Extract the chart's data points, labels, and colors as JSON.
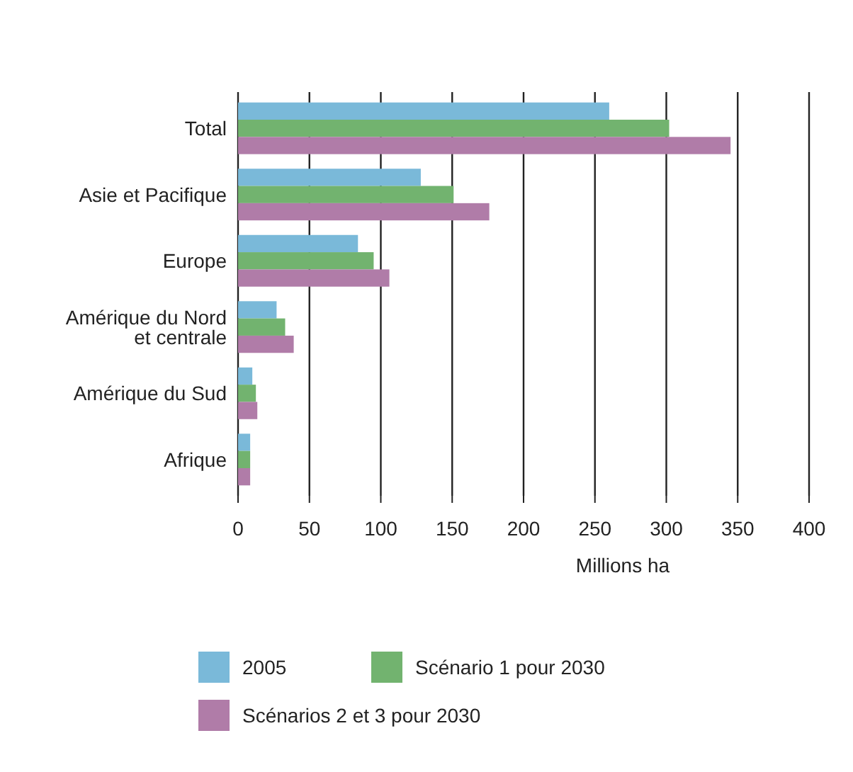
{
  "chart_data": {
    "type": "bar",
    "orientation": "horizontal",
    "xlabel": "Millions ha",
    "categories": [
      "Total",
      "Asie et Pacifique",
      "Europe",
      "Amérique du Nord\net centrale",
      "Amérique du Sud",
      "Afrique"
    ],
    "series": [
      {
        "name": "2005",
        "color": "#7ab9d9",
        "values": [
          260,
          128,
          84,
          27,
          10,
          8.5
        ]
      },
      {
        "name": "Scénario 1 pour 2030",
        "color": "#72b36f",
        "values": [
          302,
          151,
          95,
          33,
          12.5,
          8.5
        ]
      },
      {
        "name": "Scénarios 2 et 3 pour 2030",
        "color": "#b07ca8",
        "values": [
          345,
          176,
          106,
          39,
          13.5,
          8.5
        ]
      }
    ],
    "xlim": [
      0,
      400
    ],
    "xticks": [
      0,
      50,
      100,
      150,
      200,
      250,
      300,
      350,
      400
    ],
    "grid": "x",
    "legend": "bottom"
  }
}
